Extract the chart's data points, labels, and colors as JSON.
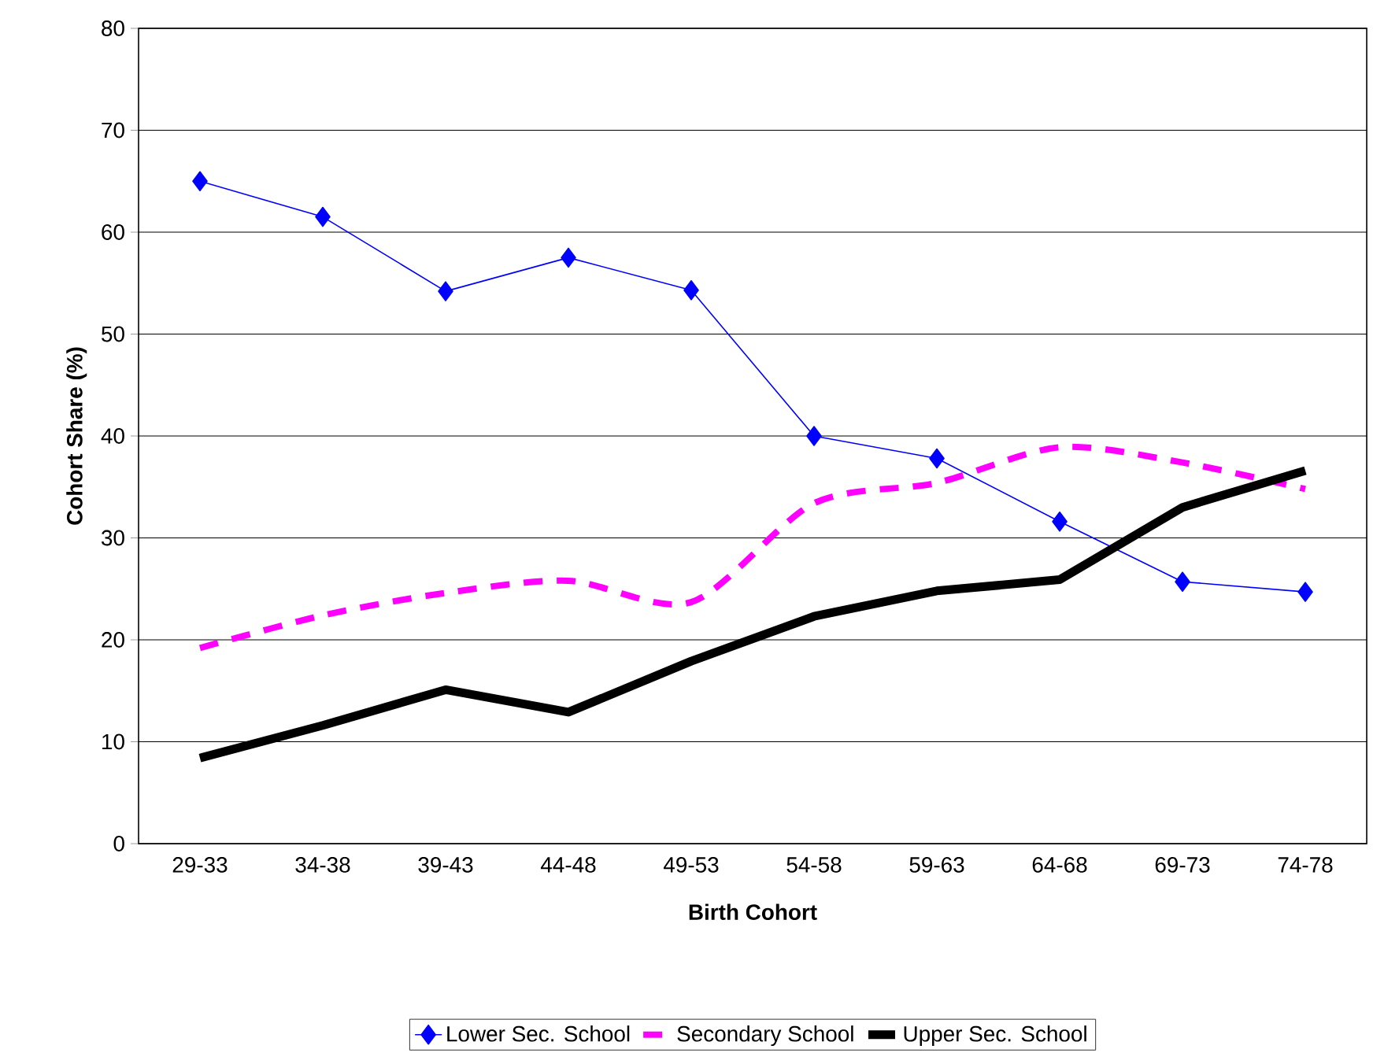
{
  "chart_data": {
    "type": "line",
    "xlabel": "Birth Cohort",
    "ylabel": "Cohort Share (%)",
    "categories": [
      "29-33",
      "34-38",
      "39-43",
      "44-48",
      "49-53",
      "54-58",
      "59-63",
      "64-68",
      "69-73",
      "74-78"
    ],
    "series": [
      {
        "name": "Lower Sec. School",
        "color": "#0000ff",
        "marker": "diamond",
        "line_style": "solid",
        "values": [
          65,
          61.5,
          54.2,
          57.5,
          54.3,
          40,
          37.8,
          31.6,
          25.7,
          24.7
        ]
      },
      {
        "name": "Secondary School",
        "color": "#ff00ff",
        "marker": "none",
        "line_style": "dashed",
        "values": [
          19.2,
          22.4,
          24.6,
          25.8,
          23.7,
          33.4,
          35.4,
          38.9,
          37.4,
          34.8
        ]
      },
      {
        "name": "Upper Sec. School",
        "color": "#000000",
        "marker": "none",
        "line_style": "solid",
        "values": [
          8.4,
          11.6,
          15.1,
          12.9,
          17.9,
          22.3,
          24.8,
          25.9,
          33.0,
          36.6
        ]
      }
    ],
    "ylim": [
      0,
      80
    ],
    "yticks": [
      0,
      10,
      20,
      30,
      40,
      50,
      60,
      70,
      80
    ],
    "grid": "y",
    "legend": "bottom"
  }
}
